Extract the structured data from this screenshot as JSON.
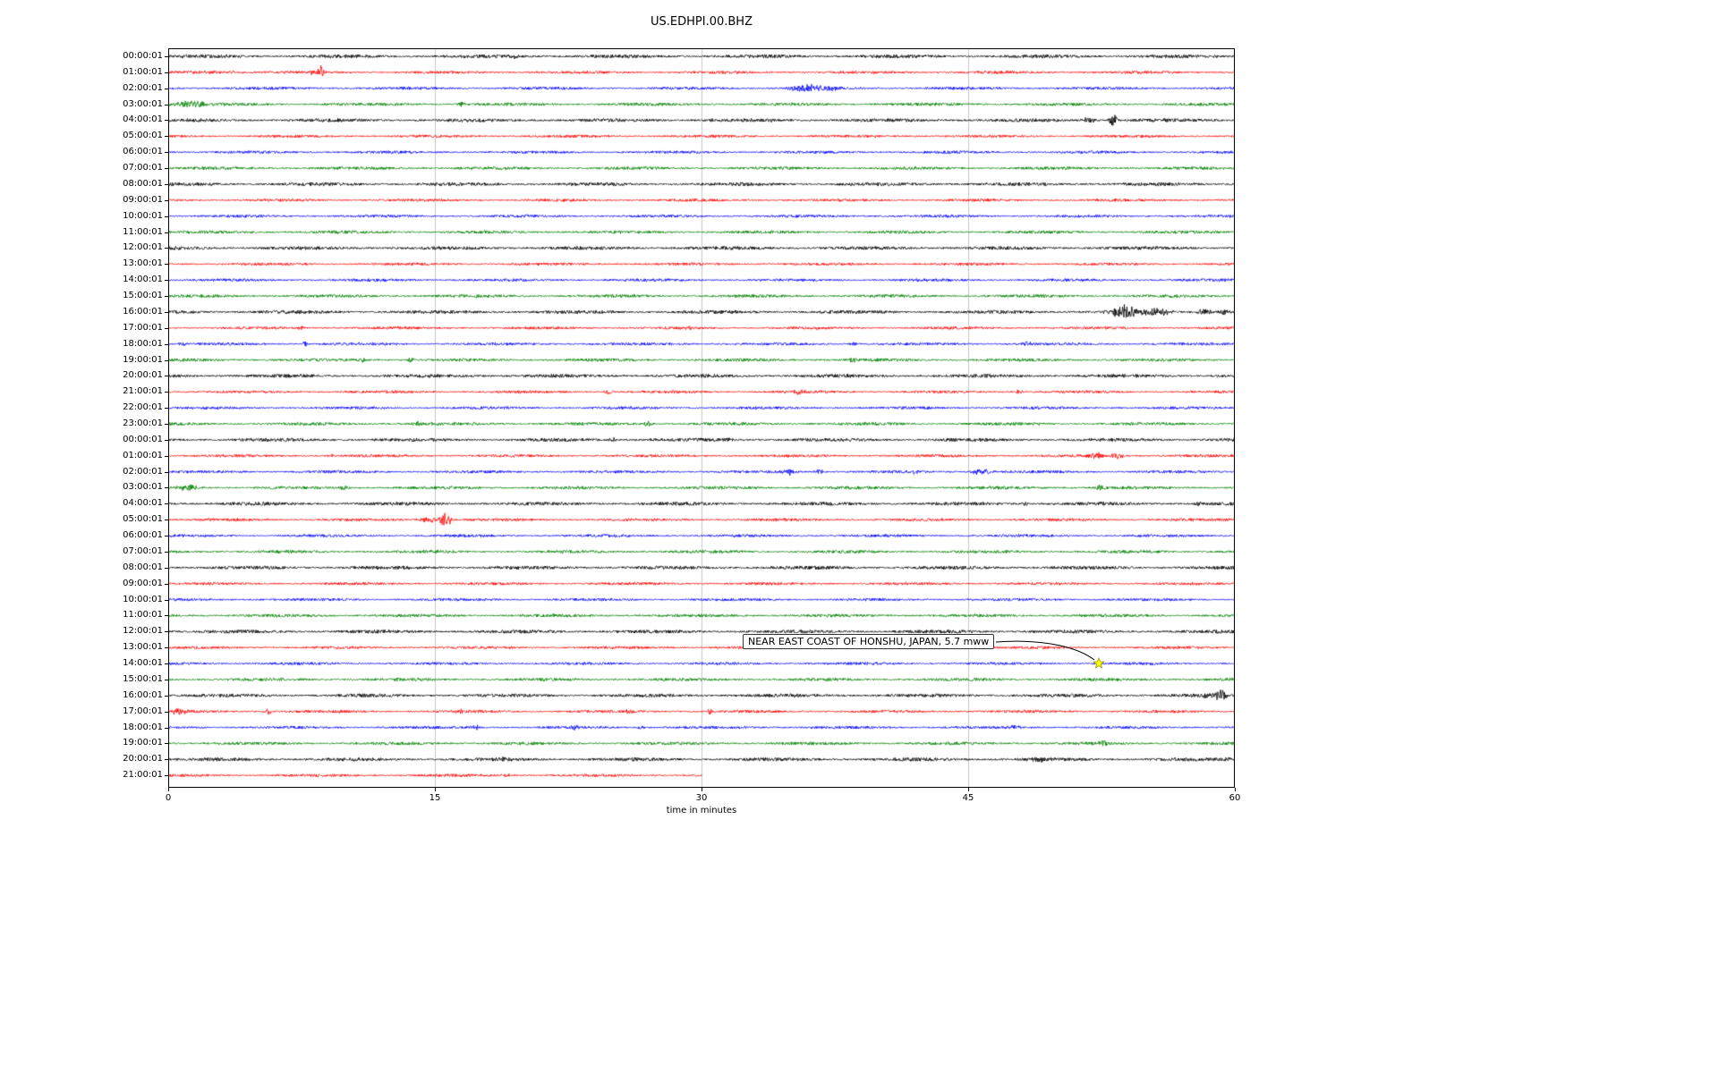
{
  "chart_data": {
    "type": "line",
    "subtype": "seismogram-helicorder-dayplot",
    "title": "US.EDHPI.00.BHZ",
    "xlabel": "time in minutes",
    "ylabel": "",
    "x_ticks": [
      0,
      15,
      30,
      45,
      60
    ],
    "xlim": [
      0,
      60
    ],
    "grid": {
      "vertical_lines_minutes": [
        15,
        30,
        45
      ],
      "color": "#c8c8c8"
    },
    "trace_color_cycle": [
      "#000000",
      "#ff0000",
      "#0000ff",
      "#008000"
    ],
    "row_labels": [
      "00:00:01",
      "01:00:01",
      "02:00:01",
      "03:00:01",
      "04:00:01",
      "05:00:01",
      "06:00:01",
      "07:00:01",
      "08:00:01",
      "09:00:01",
      "10:00:01",
      "11:00:01",
      "12:00:01",
      "13:00:01",
      "14:00:01",
      "15:00:01",
      "16:00:01",
      "17:00:01",
      "18:00:01",
      "19:00:01",
      "20:00:01",
      "21:00:01",
      "22:00:01",
      "23:00:01",
      "00:00:01",
      "01:00:01",
      "02:00:01",
      "03:00:01",
      "04:00:01",
      "05:00:01",
      "06:00:01",
      "07:00:01",
      "08:00:01",
      "09:00:01",
      "10:00:01",
      "11:00:01",
      "12:00:01",
      "13:00:01",
      "14:00:01",
      "15:00:01",
      "16:00:01",
      "17:00:01",
      "18:00:01",
      "19:00:01",
      "20:00:01",
      "21:00:01"
    ],
    "partial_row": {
      "row_index": 45,
      "end_minute": 30
    },
    "annotation": {
      "text": "NEAR EAST COAST OF HONSHU, JAPAN, 5.7 mww",
      "row_index": 38,
      "row_label": "14:00:01",
      "minute": 52.3,
      "marker": "star",
      "marker_color": "#ffff00"
    },
    "events": [
      {
        "row": 0,
        "minute": 19.5,
        "amp": 1.5,
        "width": 0.2
      },
      {
        "row": 1,
        "minute": 3.0,
        "amp": 1.2,
        "width": 2.5
      },
      {
        "row": 1,
        "minute": 8.3,
        "amp": 3.0,
        "width": 0.3
      },
      {
        "row": 1,
        "minute": 8.6,
        "amp": 9.0,
        "width": 0.12
      },
      {
        "row": 2,
        "minute": 35.8,
        "amp": 4.0,
        "width": 0.8
      },
      {
        "row": 2,
        "minute": 37.2,
        "amp": 3.5,
        "width": 0.5
      },
      {
        "row": 3,
        "minute": 1.2,
        "amp": 3.5,
        "width": 1.2
      },
      {
        "row": 3,
        "minute": 16.5,
        "amp": 2.0,
        "width": 0.4
      },
      {
        "row": 4,
        "minute": 30.5,
        "amp": 2.2,
        "width": 0.15
      },
      {
        "row": 4,
        "minute": 51.8,
        "amp": 3.5,
        "width": 0.4
      },
      {
        "row": 4,
        "minute": 53.2,
        "amp": 7.0,
        "width": 0.25
      },
      {
        "row": 16,
        "minute": 53.8,
        "amp": 8.0,
        "width": 0.7
      },
      {
        "row": 16,
        "minute": 55.5,
        "amp": 4.0,
        "width": 0.8
      },
      {
        "row": 16,
        "minute": 58.3,
        "amp": 3.5,
        "width": 0.4
      },
      {
        "row": 16,
        "minute": 59.3,
        "amp": 3.5,
        "width": 0.3
      },
      {
        "row": 17,
        "minute": 7.5,
        "amp": 1.8,
        "width": 0.2
      },
      {
        "row": 17,
        "minute": 29.3,
        "amp": 2.8,
        "width": 0.15
      },
      {
        "row": 18,
        "minute": 0.8,
        "amp": 2.8,
        "width": 0.2
      },
      {
        "row": 18,
        "minute": 7.7,
        "amp": 3.2,
        "width": 0.15
      },
      {
        "row": 18,
        "minute": 38.5,
        "amp": 2.2,
        "width": 0.3
      },
      {
        "row": 18,
        "minute": 48.3,
        "amp": 2.4,
        "width": 0.25
      },
      {
        "row": 19,
        "minute": 10.9,
        "amp": 2.6,
        "width": 0.2
      },
      {
        "row": 19,
        "minute": 13.6,
        "amp": 2.2,
        "width": 0.2
      },
      {
        "row": 19,
        "minute": 38.5,
        "amp": 2.0,
        "width": 0.3
      },
      {
        "row": 21,
        "minute": 24.8,
        "amp": 2.6,
        "width": 0.25
      },
      {
        "row": 21,
        "minute": 35.5,
        "amp": 2.2,
        "width": 0.3
      },
      {
        "row": 21,
        "minute": 47.8,
        "amp": 2.4,
        "width": 0.3
      },
      {
        "row": 23,
        "minute": 14.0,
        "amp": 2.2,
        "width": 0.3
      },
      {
        "row": 23,
        "minute": 27.0,
        "amp": 2.6,
        "width": 0.4
      },
      {
        "row": 24,
        "minute": 25.0,
        "amp": 2.2,
        "width": 0.2
      },
      {
        "row": 24,
        "minute": 31.5,
        "amp": 1.8,
        "width": 0.2
      },
      {
        "row": 25,
        "minute": 9.3,
        "amp": 1.8,
        "width": 0.3
      },
      {
        "row": 25,
        "minute": 52.2,
        "amp": 3.0,
        "width": 0.4
      },
      {
        "row": 25,
        "minute": 53.4,
        "amp": 3.0,
        "width": 0.4
      },
      {
        "row": 26,
        "minute": 35.0,
        "amp": 3.2,
        "width": 0.4
      },
      {
        "row": 26,
        "minute": 36.6,
        "amp": 2.8,
        "width": 0.3
      },
      {
        "row": 26,
        "minute": 42.0,
        "amp": 2.4,
        "width": 0.3
      },
      {
        "row": 26,
        "minute": 45.7,
        "amp": 3.0,
        "width": 0.6
      },
      {
        "row": 27,
        "minute": 1.2,
        "amp": 3.5,
        "width": 0.5
      },
      {
        "row": 27,
        "minute": 9.8,
        "amp": 2.2,
        "width": 0.3
      },
      {
        "row": 27,
        "minute": 52.4,
        "amp": 2.4,
        "width": 0.3
      },
      {
        "row": 28,
        "minute": 48.2,
        "amp": 2.4,
        "width": 0.15
      },
      {
        "row": 28,
        "minute": 58.0,
        "amp": 1.8,
        "width": 0.2
      },
      {
        "row": 29,
        "minute": 14.6,
        "amp": 3.5,
        "width": 0.5
      },
      {
        "row": 29,
        "minute": 15.6,
        "amp": 8.5,
        "width": 0.35
      },
      {
        "row": 40,
        "minute": 58.5,
        "amp": 3.0,
        "width": 0.3
      },
      {
        "row": 40,
        "minute": 59.2,
        "amp": 7.0,
        "width": 0.3
      },
      {
        "row": 41,
        "minute": 0.6,
        "amp": 3.5,
        "width": 0.4
      },
      {
        "row": 41,
        "minute": 5.6,
        "amp": 3.2,
        "width": 0.2
      },
      {
        "row": 41,
        "minute": 16.4,
        "amp": 2.6,
        "width": 0.2
      },
      {
        "row": 41,
        "minute": 26.0,
        "amp": 2.2,
        "width": 0.25
      },
      {
        "row": 41,
        "minute": 30.5,
        "amp": 2.8,
        "width": 0.2
      },
      {
        "row": 42,
        "minute": 17.3,
        "amp": 3.0,
        "width": 0.25
      },
      {
        "row": 42,
        "minute": 22.9,
        "amp": 2.4,
        "width": 0.2
      },
      {
        "row": 42,
        "minute": 26.6,
        "amp": 2.4,
        "width": 0.2
      },
      {
        "row": 42,
        "minute": 47.6,
        "amp": 2.2,
        "width": 0.3
      },
      {
        "row": 43,
        "minute": 52.6,
        "amp": 2.4,
        "width": 0.3
      },
      {
        "row": 44,
        "minute": 19.0,
        "amp": 2.2,
        "width": 0.25
      },
      {
        "row": 44,
        "minute": 48.9,
        "amp": 3.2,
        "width": 0.35
      },
      {
        "row": 44,
        "minute": 59.6,
        "amp": 2.8,
        "width": 0.2
      },
      {
        "row": 45,
        "minute": 19.0,
        "amp": 1.8,
        "width": 0.3
      }
    ]
  }
}
